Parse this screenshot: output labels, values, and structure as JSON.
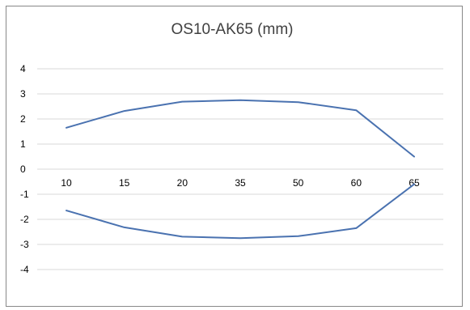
{
  "chart_data": {
    "type": "line",
    "title": "OS10-AK65 (mm)",
    "categories": [
      "10",
      "15",
      "20",
      "35",
      "50",
      "60",
      "65"
    ],
    "series": [
      {
        "values": [
          1.65,
          2.32,
          2.69,
          2.75,
          2.67,
          2.35,
          0.5
        ]
      },
      {
        "values": [
          -1.65,
          -2.32,
          -2.69,
          -2.75,
          -2.67,
          -2.35,
          -0.6
        ]
      }
    ],
    "ylim": [
      -4,
      4
    ],
    "yticks": [
      4,
      3,
      2,
      1,
      0,
      -1,
      -2,
      -3,
      -4
    ],
    "grid": true,
    "line_color": "#4a72b0",
    "grid_color": "#d9d9d9"
  }
}
